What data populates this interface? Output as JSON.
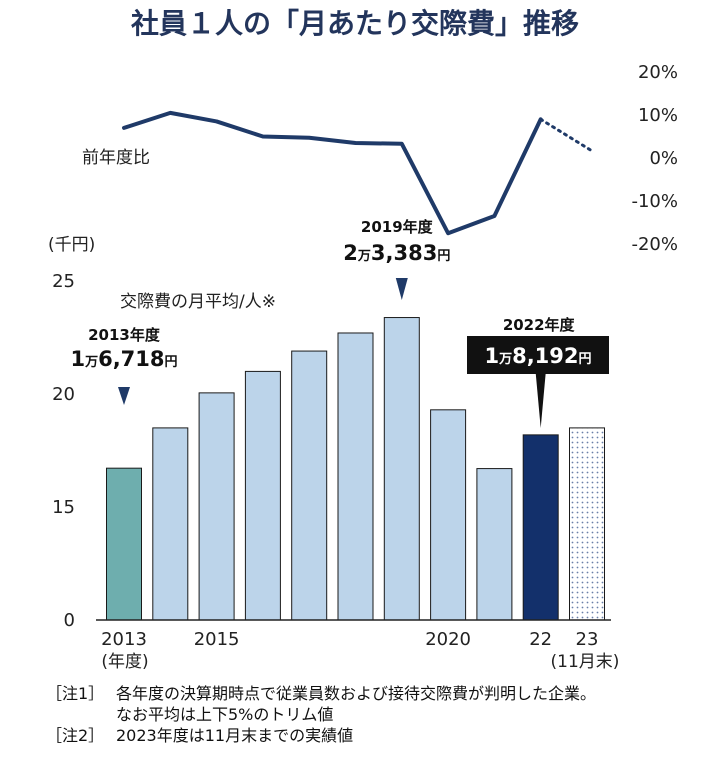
{
  "chart_data": {
    "type": "bar+line",
    "title": "社員１人の「月あたり交際費」推移",
    "bar_series": {
      "name": "交際費の月平均/人※",
      "unit": "(千円)",
      "years": [
        2013,
        2014,
        2015,
        2016,
        2017,
        2018,
        2019,
        2020,
        2021,
        2022,
        2023
      ],
      "values": [
        16.718,
        18.5,
        20.05,
        21.0,
        21.9,
        22.7,
        23.383,
        19.3,
        16.7,
        18.192,
        18.5
      ],
      "ylim": [
        0,
        25
      ],
      "yticks": [
        "25",
        "20",
        "15",
        "0"
      ],
      "colors": [
        "#6eaeae",
        "#bcd4ea",
        "#bcd4ea",
        "#bcd4ea",
        "#bcd4ea",
        "#bcd4ea",
        "#bcd4ea",
        "#bcd4ea",
        "#bcd4ea",
        "#13306b",
        "dotted"
      ]
    },
    "line_series": {
      "name": "前年度比",
      "unit": "%",
      "years": [
        2013,
        2014,
        2015,
        2016,
        2017,
        2018,
        2019,
        2020,
        2021,
        2022,
        2023
      ],
      "values": [
        7,
        10.5,
        8.5,
        5,
        4.7,
        3.5,
        3.3,
        -17.5,
        -13.5,
        9,
        1.5
      ],
      "dashed_last": true,
      "ylim": [
        -20,
        20
      ],
      "yticks": [
        "20%",
        "10%",
        "0%",
        "-10%",
        "-20%"
      ]
    },
    "xticks": [
      {
        "year": 2013,
        "label": "2013"
      },
      {
        "year": 2015,
        "label": "2015"
      },
      {
        "year": 2020,
        "label": "2020"
      },
      {
        "year": 2022,
        "label": "22"
      },
      {
        "year": 2023,
        "label": "23"
      }
    ],
    "xlabel": "(年度)",
    "x_note_2023": "(11月末)",
    "annotations": [
      {
        "year": 2013,
        "label": "2013年度",
        "v1": "1",
        "man": "万",
        "v2": "6,718",
        "yen": "円",
        "style": "arrow"
      },
      {
        "year": 2019,
        "label": "2019年度",
        "v1": "2",
        "man": "万",
        "v2": "3,383",
        "yen": "円",
        "style": "arrow"
      },
      {
        "year": 2022,
        "label": "2022年度",
        "v1": "1",
        "man": "万",
        "v2": "8,192",
        "yen": "円",
        "style": "box"
      }
    ]
  },
  "notes": {
    "note1_tag": "［注1］",
    "note1_line1": "各年度の決算期時点で従業員数および接待交際費が判明した企業。",
    "note1_line2": "なお平均は上下5%のトリム値",
    "note2_tag": "［注2］",
    "note2_line1": "2023年度は11月末までの実績値"
  }
}
